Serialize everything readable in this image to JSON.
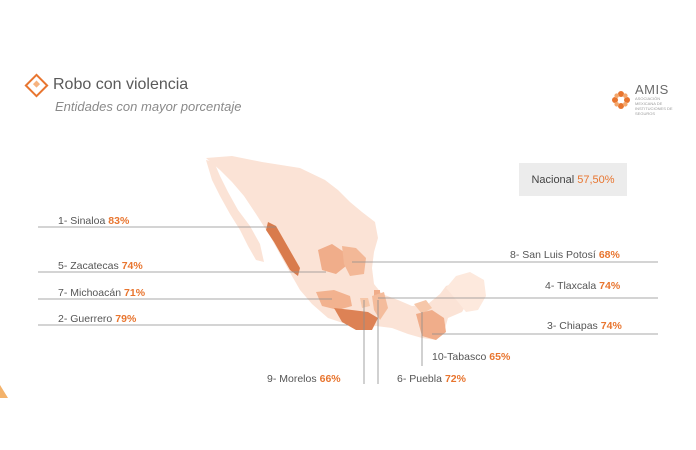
{
  "header": {
    "title": "Robo con  violencia",
    "subtitle": "Entidades con mayor porcentaje"
  },
  "logo": {
    "name": "AMIS",
    "subtitle": "ASOCIACIÓN MEXICANA DE INSTITUCIONES DE SEGUROS"
  },
  "national": {
    "label": "Nacional",
    "value": "57,50%"
  },
  "states": [
    {
      "label": "1- Sinaloa",
      "value": "83%"
    },
    {
      "label": "2- Guerrero",
      "value": "79%"
    },
    {
      "label": "3- Chiapas",
      "value": "74%"
    },
    {
      "label": "4- Tlaxcala",
      "value": "74%"
    },
    {
      "label": "5- Zacatecas",
      "value": "74%"
    },
    {
      "label": "6- Puebla",
      "value": "72%"
    },
    {
      "label": "7- Michoacán",
      "value": "71%"
    },
    {
      "label": "8- San Luis Potosí",
      "value": "68%"
    },
    {
      "label": "9- Morelos",
      "value": "66%"
    },
    {
      "label": "10-Tabasco",
      "value": "65%"
    }
  ],
  "colors": {
    "accent": "#e8752f",
    "map_base": "#fbe3d6",
    "high": "#d97b4c"
  }
}
